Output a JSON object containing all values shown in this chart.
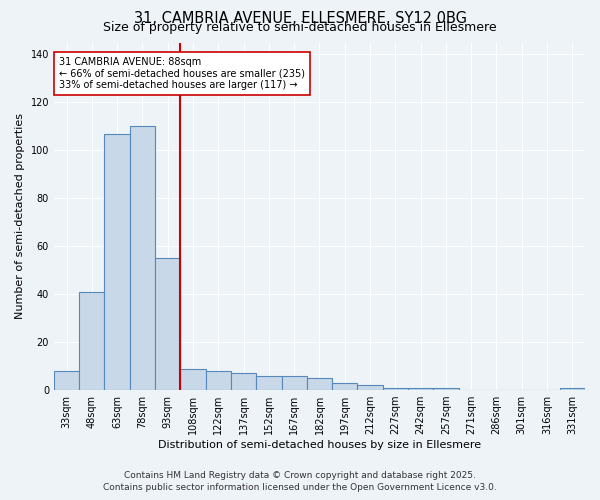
{
  "title_line1": "31, CAMBRIA AVENUE, ELLESMERE, SY12 0BG",
  "title_line2": "Size of property relative to semi-detached houses in Ellesmere",
  "categories": [
    "33sqm",
    "48sqm",
    "63sqm",
    "78sqm",
    "93sqm",
    "108sqm",
    "122sqm",
    "137sqm",
    "152sqm",
    "167sqm",
    "182sqm",
    "197sqm",
    "212sqm",
    "227sqm",
    "242sqm",
    "257sqm",
    "271sqm",
    "286sqm",
    "301sqm",
    "316sqm",
    "331sqm"
  ],
  "values": [
    8,
    41,
    107,
    110,
    55,
    9,
    8,
    7,
    6,
    6,
    5,
    3,
    2,
    1,
    1,
    1,
    0,
    0,
    0,
    0,
    1
  ],
  "bar_color": "#c8d8e8",
  "bar_edge_color": "#5588bb",
  "annotation_line1": "31 CAMBRIA AVENUE: 88sqm",
  "annotation_line2": "← 66% of semi-detached houses are smaller (235)",
  "annotation_line3": "33% of semi-detached houses are larger (117) →",
  "annotation_box_color": "#ffffff",
  "annotation_box_edge_color": "#cc0000",
  "red_line_color": "#cc0000",
  "red_line_x": 4.5,
  "ylabel": "Number of semi-detached properties",
  "xlabel": "Distribution of semi-detached houses by size in Ellesmere",
  "ylim": [
    0,
    145
  ],
  "yticks": [
    0,
    20,
    40,
    60,
    80,
    100,
    120,
    140
  ],
  "footer_line1": "Contains HM Land Registry data © Crown copyright and database right 2025.",
  "footer_line2": "Contains public sector information licensed under the Open Government Licence v3.0.",
  "background_color": "#eef3f8",
  "grid_color": "#ffffff",
  "title_fontsize": 10.5,
  "subtitle_fontsize": 9,
  "axis_fontsize": 8,
  "tick_fontsize": 7,
  "annotation_fontsize": 7,
  "footer_fontsize": 6.5
}
